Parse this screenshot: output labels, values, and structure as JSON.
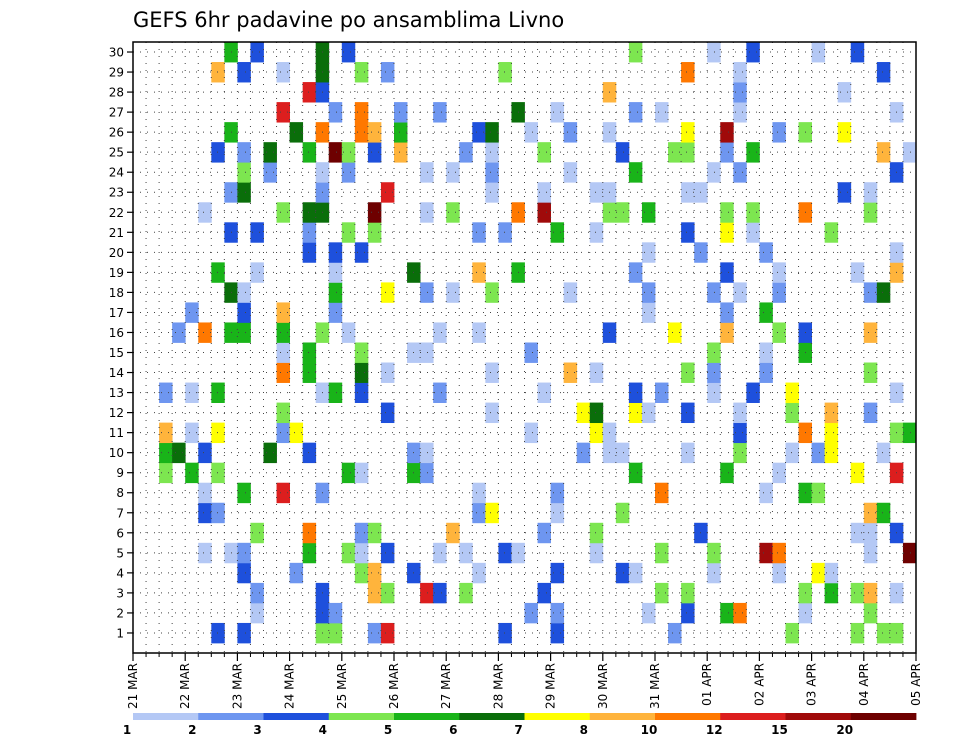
{
  "chart_data": {
    "type": "heatmap",
    "title": "GEFS 6hr padavine po ansamblima Livno",
    "xlabel": "",
    "ylabel": "",
    "x_tick_labels": [
      "21 MAR",
      "22 MAR",
      "23 MAR",
      "24 MAR",
      "25 MAR",
      "26 MAR",
      "27 MAR",
      "28 MAR",
      "29 MAR",
      "30 MAR",
      "31 MAR",
      "01 APR",
      "02 APR",
      "03 APR",
      "04 APR",
      "05 APR"
    ],
    "y_tick_labels": [
      "1",
      "2",
      "3",
      "4",
      "5",
      "6",
      "7",
      "8",
      "9",
      "10",
      "11",
      "12",
      "13",
      "14",
      "15",
      "16",
      "17",
      "18",
      "19",
      "20",
      "21",
      "22",
      "23",
      "24",
      "25",
      "26",
      "27",
      "28",
      "29",
      "30"
    ],
    "n_timesteps": 60,
    "n_members": 30,
    "grid": true,
    "legend_position": "bottom",
    "legend_levels": [
      "1",
      "2",
      "3",
      "4",
      "5",
      "6",
      "7",
      "8",
      "10",
      "12",
      "15",
      "20"
    ],
    "colors": [
      "#b4c8f5",
      "#6e96f0",
      "#1e50dc",
      "#7de650",
      "#19b419",
      "#0a6e0a",
      "#ffff00",
      "#ffb43c",
      "#ff7800",
      "#dc1e1e",
      "#a00a0a",
      "#6e0000"
    ],
    "encoding": "cells lists rows of precipitation class indices (1-12 matching legend colors) for ensemble members 1..30; each row string has one character per 6-hour timestep: '.' = below 1 mm, '1'-'9' = classes 1-9, 'a' = class 10, 'b' = class 11, 'c' = class 12",
    "cells": [
      "......3.3.....44..2a........3...3........2........4....4.44.",
      ".........1....32..............2.2......1..3..59....1....4...",
      ".........2....3...84..a3.4.....3........4.4........4.5.48.1.",
      "........3...2....48..3....1.....3....31.....1....1..71......",
      ".....1.12....5..41.3...1.1..31.....1....4...4...b9......1..c",
      ".........4...9...24.....8......2...4.......3...........11.3.",
      ".....32...................27....1....4..................85..",
      ".....1..5..a..2...........1.....2.......9.......1..54.......",
      "..4.5.4.........51...52...............5......5...1.....7..a.",
      "..56.3....6..3.......21...........2.11....1...4...1.27...1..",
      "..8.1.7....27.................1....71.........3....9.7....45",
      "...........4.......3.......1......76..71..3...1...4..8..2...",
      "..2.1.5.......15.3.....2.......1......3.2...1..3..7.......1.",
      "...........9.5...6.1.......1.....8.1......4.2...2.......4...",
      "...........1.5...4...11.......2.............4...1..5........",
      "...2.9.55..5..4.1......1..1.........3....7...8...4.3....8...",
      "....2...3..8...2.......................1.....2..5...........",
      ".......61......5...7..2.1..4.....1.....2....2.1..2......26..",
      "......5..1.....1.....6....8..5........2......3...1.....1..8.",
      ".............3.3.3.....................1...2....2.........1.",
      ".......3.3...2..4.4.......2.2...5..1......3..7.1.....4......",
      ".....1.....4.66...c...1.4....9.b....44.5.....4.4...9....4...",
      ".......26.....2....a.......1...1...11.....11..........3.1...",
      "........4.2...1.2.....1.1..2.....1....5.....1.2...........3."
    ],
    "cells_continued": [
      "......3.2.6..5.c4.3.8....2.1...4.....3...44..2.5.........8.1",
      ".......5....6.9..98.5.....36..1..2..1.....7..b...2.4..7.....",
      "...........a...2.9..2..2.....6..1.....2.1.....1...........1.",
      ".............a3.....................8.........2.......1.....",
      "......8.3..1..6..4.2........4.............9...1..........3..",
      ".......5.3....6.3.....................4.....1..3....1..3...."
    ]
  }
}
